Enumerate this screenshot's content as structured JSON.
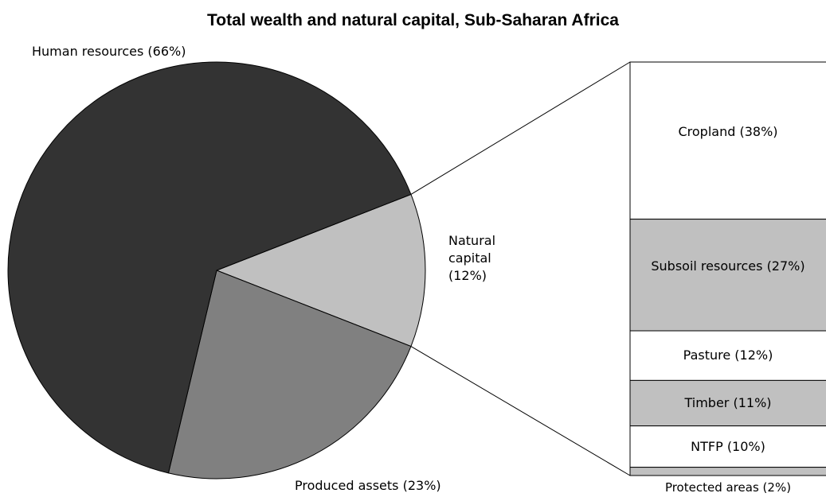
{
  "chart_data": [
    {
      "type": "pie",
      "title": "Total wealth and natural capital, Sub-Saharan Africa",
      "categories": [
        "Natural capital",
        "Produced assets",
        "Human resources"
      ],
      "values": [
        12,
        23,
        66
      ],
      "value_labels": [
        "(12%)",
        "(23%)",
        "(66%)"
      ],
      "colors": [
        "#c0c0c0",
        "#808080",
        "#333333"
      ]
    },
    {
      "type": "bar",
      "categories": [
        "Cropland",
        "Subsoil resources",
        "Pasture",
        "Timber",
        "NTFP",
        "Protected areas"
      ],
      "values": [
        38,
        27,
        12,
        11,
        10,
        2
      ],
      "value_labels": [
        "(38%)",
        "(27%)",
        "(12%)",
        "(11%)",
        "(10%)",
        "(2%)"
      ],
      "colors": [
        "#ffffff",
        "#c0c0c0",
        "#ffffff",
        "#c0c0c0",
        "#ffffff",
        "#c0c0c0"
      ]
    }
  ]
}
